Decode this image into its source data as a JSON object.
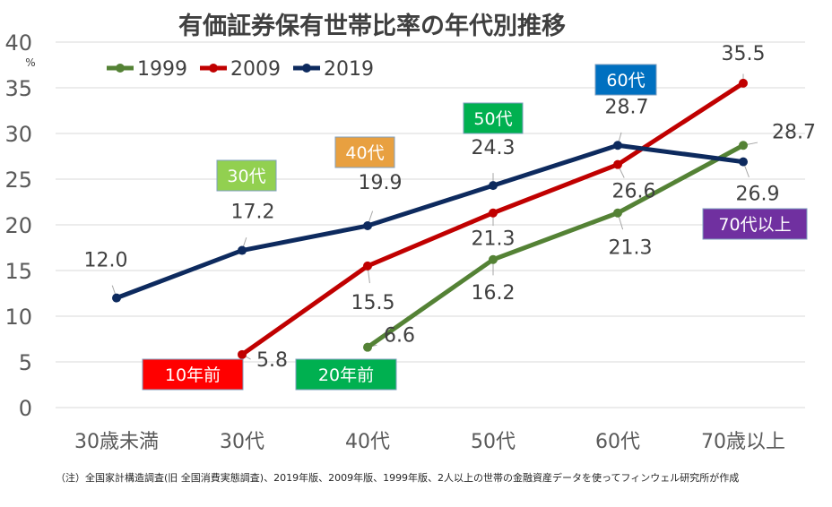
{
  "chart_data": {
    "type": "line",
    "title": "有価証券保有世帯比率の年代別推移",
    "ylabel": "%",
    "ylim": [
      0,
      40
    ],
    "yticks": [
      0,
      5,
      10,
      15,
      20,
      25,
      30,
      35,
      40
    ],
    "grid": true,
    "legend_position": "top-left",
    "categories": [
      "30歳未満",
      "30代",
      "40代",
      "50代",
      "60代",
      "70歳以上"
    ],
    "series": [
      {
        "name": "1999",
        "color": "#548235",
        "values": [
          null,
          null,
          6.6,
          16.2,
          21.3,
          28.7
        ],
        "labels": [
          "",
          "",
          "6.6",
          "16.2",
          "21.3",
          "28.7"
        ]
      },
      {
        "name": "2009",
        "color": "#c00000",
        "values": [
          null,
          5.8,
          15.5,
          21.3,
          26.6,
          35.5
        ],
        "labels": [
          "",
          "5.8",
          "15.5",
          "21.3",
          "26.6",
          "35.5"
        ]
      },
      {
        "name": "2019",
        "color": "#0d2a5e",
        "values": [
          12.0,
          17.2,
          19.9,
          24.3,
          28.7,
          26.9
        ],
        "labels": [
          "12.0",
          "17.2",
          "19.9",
          "24.3",
          "28.7",
          "26.9"
        ]
      }
    ],
    "annotations": [
      {
        "text": "30代",
        "color": "#92d050"
      },
      {
        "text": "40代",
        "color": "#e8a040"
      },
      {
        "text": "50代",
        "color": "#00b050"
      },
      {
        "text": "60代",
        "color": "#0070c0"
      },
      {
        "text": "70代以上",
        "color": "#7030a0"
      },
      {
        "text": "10年前",
        "color": "#ff0000"
      },
      {
        "text": "20年前",
        "color": "#00b050"
      }
    ],
    "note": "（注）全国家計構造調査(旧 全国消費実態調査)、2019年版、2009年版、1999年版、2人以上の世帯の金融資産データを使ってフィンウェル研究所が作成"
  }
}
